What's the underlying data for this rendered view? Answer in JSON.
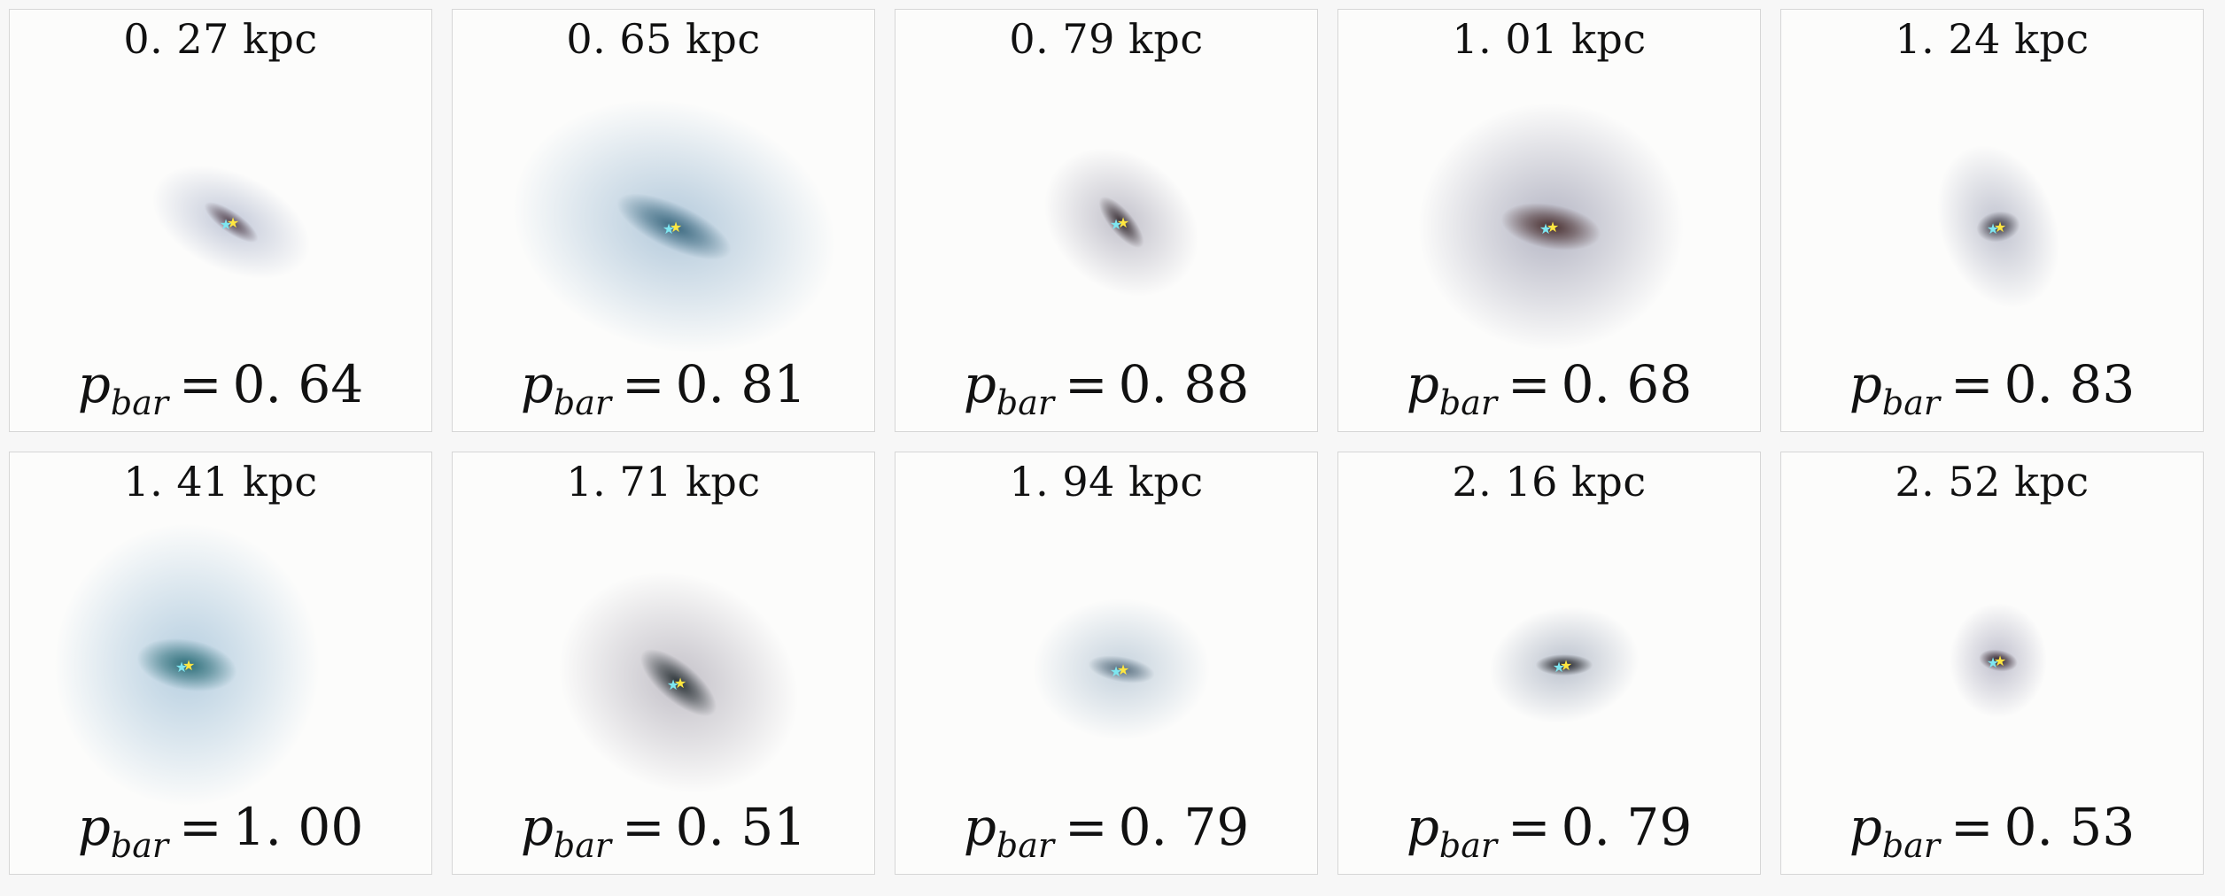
{
  "panels": [
    {
      "distance": "0. 27 kpc",
      "p_symbol": "p",
      "p_subscript": "bar",
      "equals": "=",
      "p_value": "0. 64",
      "galaxy": {
        "cx": 250,
        "cy": 240,
        "rx": 95,
        "ry": 55,
        "rot": 25,
        "color": "#5a4a55",
        "halo": "#b8bfd2"
      }
    },
    {
      "distance": "0. 65 kpc",
      "p_symbol": "p",
      "p_subscript": "bar",
      "equals": "=",
      "p_value": "0. 81",
      "galaxy": {
        "cx": 250,
        "cy": 245,
        "rx": 185,
        "ry": 140,
        "rot": 15,
        "color": "#3d6a80",
        "halo": "#a7c1d6"
      }
    },
    {
      "distance": "0. 79 kpc",
      "p_symbol": "p",
      "p_subscript": "bar",
      "equals": "=",
      "p_value": "0. 88",
      "galaxy": {
        "cx": 255,
        "cy": 240,
        "rx": 95,
        "ry": 75,
        "rot": 40,
        "color": "#3a3035",
        "halo": "#b7b6c2"
      }
    },
    {
      "distance": "1. 01 kpc",
      "p_symbol": "p",
      "p_subscript": "bar",
      "equals": "=",
      "p_value": "0. 68",
      "galaxy": {
        "cx": 240,
        "cy": 245,
        "rx": 150,
        "ry": 140,
        "rot": 0,
        "color": "#4a3030",
        "halo": "#a8a9ba"
      }
    },
    {
      "distance": "1. 24 kpc",
      "p_symbol": "p",
      "p_subscript": "bar",
      "equals": "=",
      "p_value": "0. 83",
      "galaxy": {
        "cx": 245,
        "cy": 245,
        "rx": 65,
        "ry": 95,
        "rot": -20,
        "color": "#3c3a44",
        "halo": "#b6b9c8"
      }
    },
    {
      "distance": "1. 41 kpc",
      "p_symbol": "p",
      "p_subscript": "bar",
      "equals": "=",
      "p_value": "1. 00",
      "galaxy": {
        "cx": 200,
        "cy": 240,
        "rx": 150,
        "ry": 160,
        "rot": 0,
        "color": "#2d6e78",
        "halo": "#a9c6db"
      }
    },
    {
      "distance": "1. 71 kpc",
      "p_symbol": "p",
      "p_subscript": "bar",
      "equals": "=",
      "p_value": "0. 51",
      "galaxy": {
        "cx": 255,
        "cy": 260,
        "rx": 140,
        "ry": 120,
        "rot": 30,
        "color": "#2c3438",
        "halo": "#b9b6bf"
      }
    },
    {
      "distance": "1. 94 kpc",
      "p_symbol": "p",
      "p_subscript": "bar",
      "equals": "=",
      "p_value": "0. 79",
      "galaxy": {
        "cx": 255,
        "cy": 245,
        "rx": 100,
        "ry": 80,
        "rot": 0,
        "color": "#5a7080",
        "halo": "#bccbd8"
      }
    },
    {
      "distance": "2. 16 kpc",
      "p_symbol": "p",
      "p_subscript": "bar",
      "equals": "=",
      "p_value": "0. 79",
      "galaxy": {
        "cx": 255,
        "cy": 240,
        "rx": 85,
        "ry": 65,
        "rot": -10,
        "color": "#1f2024",
        "halo": "#b0b8c6"
      }
    },
    {
      "distance": "2. 52 kpc",
      "p_symbol": "p",
      "p_subscript": "bar",
      "equals": "=",
      "p_value": "0. 53",
      "galaxy": {
        "cx": 245,
        "cy": 235,
        "rx": 55,
        "ry": 65,
        "rot": 0,
        "color": "#2a1a22",
        "halo": "#b5b5c5"
      }
    }
  ],
  "colors": {
    "background": "#f7f7f7",
    "panel_bg": "#fcfcfb",
    "text": "#111111",
    "star_yellow": "#ffe640",
    "star_cyan": "#7ee6f0"
  }
}
